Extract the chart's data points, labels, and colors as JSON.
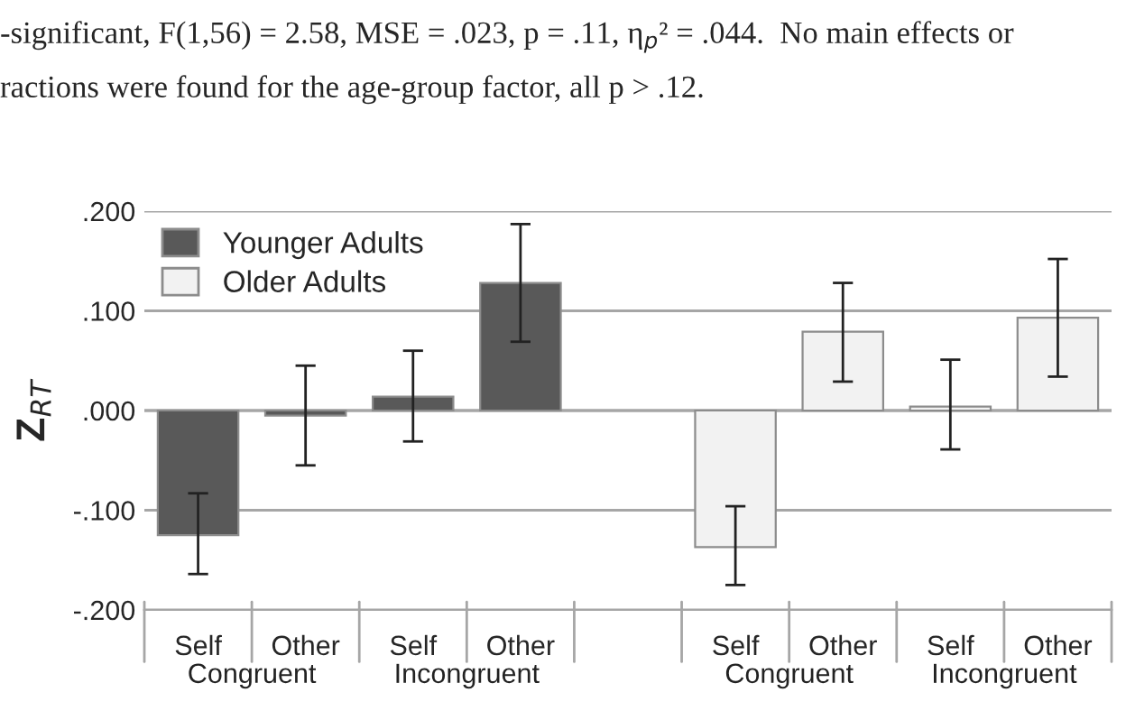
{
  "chart_data": {
    "type": "bar",
    "title": "-significant, F(1,56) = 2.58, MSE = .023, p = .11, η$_{p}$² = .044.  No main effects or",
    "subtitle": "ractions were found for the age-group factor, all p > .12.",
    "ylabel": "Z$_{RT}$",
    "categories": [
      "Self",
      "Other",
      "Self",
      "Other",
      null,
      "Self",
      "Other",
      "Self",
      "Other"
    ],
    "series": [
      {
        "name": "Younger Adults",
        "color": "#595959",
        "values": [
          -0.125,
          -0.005,
          0.014,
          0.128,
          null,
          null,
          null,
          null,
          null
        ],
        "errors": [
          [
            -0.164,
            -0.083
          ],
          [
            -0.055,
            0.045
          ],
          [
            -0.031,
            0.06
          ],
          [
            0.069,
            0.187
          ],
          null,
          null,
          null,
          null,
          null
        ]
      },
      {
        "name": "Older Adults",
        "color": "#f2f2f2",
        "values": [
          null,
          null,
          null,
          null,
          null,
          -0.137,
          0.079,
          0.004,
          0.093
        ],
        "errors": [
          null,
          null,
          null,
          null,
          null,
          [
            -0.175,
            -0.096
          ],
          [
            0.029,
            0.128
          ],
          [
            -0.039,
            0.051
          ],
          [
            0.034,
            0.152
          ]
        ]
      }
    ],
    "annotations": [
      "Congruent",
      "Incongruent",
      "Congruent",
      "Incongruent"
    ],
    "ylim": [
      -0.2,
      0.2
    ],
    "yticks": [
      {
        "value": -0.2,
        "label": "-.200"
      },
      {
        "value": -0.1,
        "label": "-.100"
      },
      {
        "value": 0,
        "label": ".000"
      },
      {
        "value": 0.1,
        "label": ".100"
      },
      {
        "value": 0.2,
        "label": ".200"
      }
    ],
    "grid": "y",
    "legend": "top left"
  }
}
